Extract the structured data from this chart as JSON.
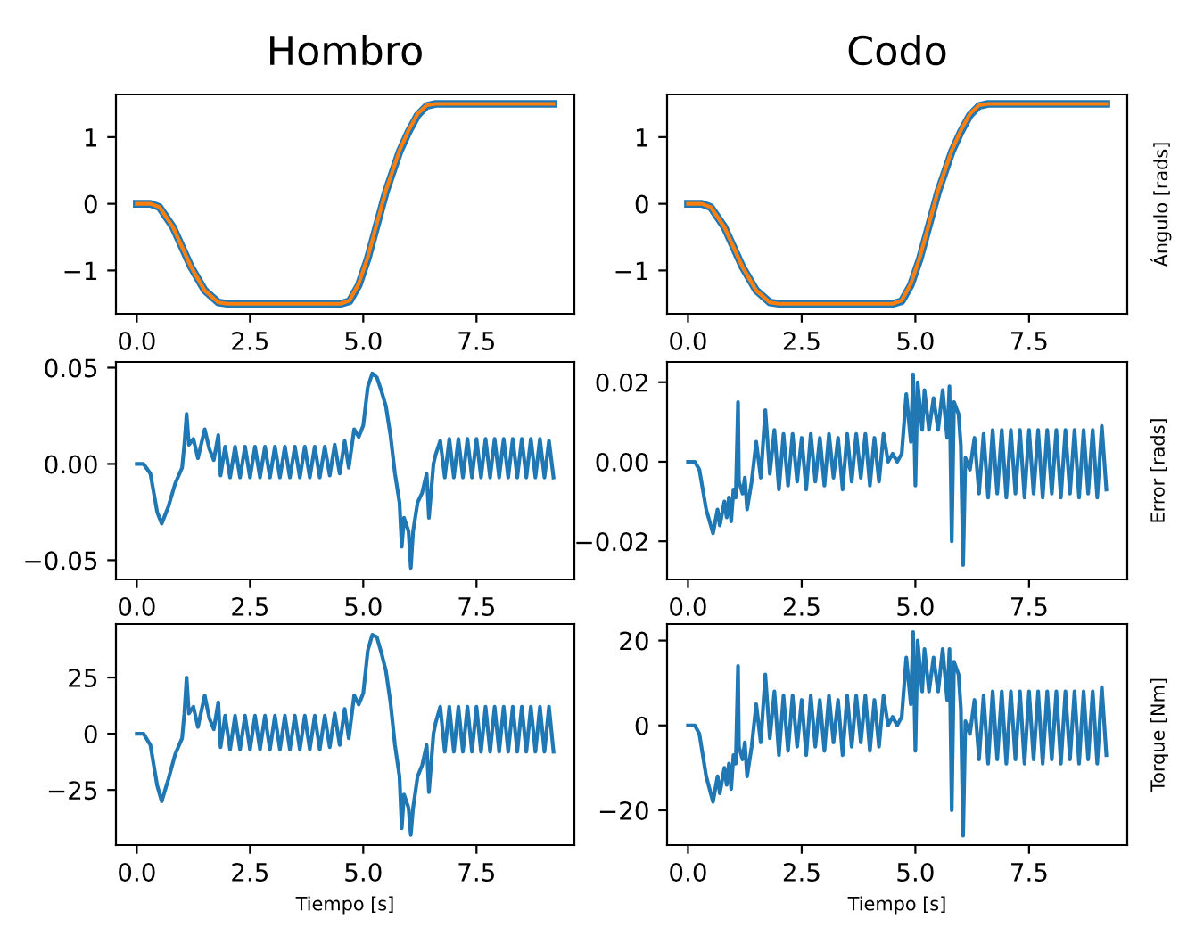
{
  "chart_data": [
    {
      "type": "line",
      "title": "Hombro",
      "xlim": [
        -0.46,
        9.66
      ],
      "xticks": [
        {
          "value": 0,
          "label": "0.0"
        },
        {
          "value": 2.5,
          "label": "2.5"
        },
        {
          "value": 5,
          "label": "5.0"
        },
        {
          "value": 7.5,
          "label": "7.5"
        }
      ],
      "ylim": [
        -1.65,
        1.64
      ],
      "yticks": [
        {
          "value": -1,
          "label": "−1"
        },
        0,
        1
      ],
      "grid": false,
      "x": [
        0,
        0.3,
        0.5,
        0.8,
        1.0,
        1.2,
        1.5,
        1.8,
        2.0,
        2.5,
        3,
        3.5,
        4,
        4.5,
        4.7,
        4.9,
        5.1,
        5.3,
        5.5,
        5.8,
        6.0,
        6.2,
        6.4,
        6.6,
        6.8,
        7.5,
        8,
        8.5,
        9,
        9.2
      ],
      "series": [
        {
          "color": "#1f77b4",
          "values": [
            0,
            0,
            -0.05,
            -0.35,
            -0.65,
            -0.95,
            -1.3,
            -1.48,
            -1.5,
            -1.5,
            -1.5,
            -1.5,
            -1.5,
            -1.5,
            -1.46,
            -1.22,
            -0.82,
            -0.32,
            0.18,
            0.78,
            1.08,
            1.33,
            1.47,
            1.5,
            1.5,
            1.5,
            1.5,
            1.5,
            1.5,
            1.5
          ]
        },
        {
          "color": "#ff7f0e",
          "values": [
            0,
            0,
            -0.05,
            -0.35,
            -0.65,
            -0.95,
            -1.3,
            -1.48,
            -1.5,
            -1.5,
            -1.5,
            -1.5,
            -1.5,
            -1.5,
            -1.45,
            -1.2,
            -0.8,
            -0.3,
            0.2,
            0.8,
            1.1,
            1.35,
            1.48,
            1.5,
            1.5,
            1.5,
            1.5,
            1.5,
            1.5,
            1.5
          ]
        }
      ]
    },
    {
      "type": "line",
      "title": "Codo",
      "ylabel": "Ángulo [rads]",
      "xlim": [
        -0.46,
        9.66
      ],
      "xticks": [
        {
          "value": 0,
          "label": "0.0"
        },
        {
          "value": 2.5,
          "label": "2.5"
        },
        {
          "value": 5,
          "label": "5.0"
        },
        {
          "value": 7.5,
          "label": "7.5"
        }
      ],
      "ylim": [
        -1.65,
        1.64
      ],
      "yticks": [
        {
          "value": -1,
          "label": "−1"
        },
        0,
        1
      ],
      "grid": false,
      "x": [
        0,
        0.3,
        0.5,
        0.8,
        1.0,
        1.2,
        1.5,
        1.8,
        2.0,
        2.5,
        3,
        3.5,
        4,
        4.5,
        4.7,
        4.9,
        5.1,
        5.3,
        5.5,
        5.8,
        6.0,
        6.2,
        6.4,
        6.6,
        6.8,
        7.5,
        8,
        8.5,
        9,
        9.2
      ],
      "series": [
        {
          "color": "#1f77b4",
          "values": [
            0,
            0,
            -0.05,
            -0.35,
            -0.65,
            -0.95,
            -1.3,
            -1.48,
            -1.5,
            -1.5,
            -1.5,
            -1.5,
            -1.5,
            -1.5,
            -1.46,
            -1.22,
            -0.82,
            -0.32,
            0.18,
            0.78,
            1.08,
            1.33,
            1.47,
            1.5,
            1.5,
            1.5,
            1.5,
            1.5,
            1.5,
            1.5
          ]
        },
        {
          "color": "#ff7f0e",
          "values": [
            0,
            0,
            -0.05,
            -0.35,
            -0.65,
            -0.95,
            -1.3,
            -1.48,
            -1.5,
            -1.5,
            -1.5,
            -1.5,
            -1.5,
            -1.5,
            -1.45,
            -1.2,
            -0.8,
            -0.3,
            0.2,
            0.8,
            1.1,
            1.35,
            1.48,
            1.5,
            1.5,
            1.5,
            1.5,
            1.5,
            1.5,
            1.5
          ]
        }
      ]
    },
    {
      "type": "line",
      "xlim": [
        -0.46,
        9.66
      ],
      "xticks": [
        {
          "value": 0,
          "label": "0.0"
        },
        {
          "value": 2.5,
          "label": "2.5"
        },
        {
          "value": 5,
          "label": "5.0"
        },
        {
          "value": 7.5,
          "label": "7.5"
        }
      ],
      "ylim": [
        -0.06,
        0.053
      ],
      "yticks": [
        {
          "value": -0.05,
          "label": "−0.05"
        },
        {
          "value": 0,
          "label": "0.00"
        },
        {
          "value": 0.05,
          "label": "0.05"
        }
      ],
      "grid": false,
      "series": [
        {
          "color": "#1f77b4",
          "x": [
            0,
            0.15,
            0.3,
            0.45,
            0.55,
            0.7,
            0.85,
            1.0,
            1.05,
            1.1,
            1.15,
            1.25,
            1.35,
            1.5,
            1.6,
            1.7,
            1.8,
            1.85,
            1.95,
            2.06,
            2.17,
            2.28,
            2.39,
            2.5,
            2.61,
            2.72,
            2.83,
            2.94,
            3.05,
            3.16,
            3.27,
            3.38,
            3.49,
            3.6,
            3.71,
            3.82,
            3.93,
            4.04,
            4.15,
            4.26,
            4.37,
            4.48,
            4.59,
            4.68,
            4.8,
            4.9,
            5.0,
            5.1,
            5.2,
            5.3,
            5.4,
            5.5,
            5.6,
            5.7,
            5.8,
            5.85,
            5.9,
            6.0,
            6.05,
            6.1,
            6.2,
            6.3,
            6.4,
            6.45,
            6.55,
            6.6,
            6.7,
            6.8,
            6.9,
            7.0,
            7.1,
            7.2,
            7.3,
            7.4,
            7.5,
            7.6,
            7.7,
            7.8,
            7.9,
            8.0,
            8.1,
            8.2,
            8.3,
            8.4,
            8.5,
            8.6,
            8.7,
            8.8,
            8.9,
            9.0,
            9.1,
            9.2
          ],
          "values": [
            0,
            0,
            -0.005,
            -0.025,
            -0.031,
            -0.022,
            -0.01,
            -0.002,
            0.01,
            0.026,
            0.01,
            0.013,
            0.003,
            0.018,
            0.008,
            0.002,
            0.015,
            -0.006,
            0.009,
            -0.007,
            0.009,
            -0.007,
            0.009,
            -0.007,
            0.009,
            -0.007,
            0.009,
            -0.007,
            0.009,
            -0.007,
            0.009,
            -0.007,
            0.009,
            -0.007,
            0.009,
            -0.007,
            0.009,
            -0.007,
            0.009,
            -0.006,
            0.01,
            -0.005,
            0.012,
            -0.002,
            0.018,
            0.014,
            0.02,
            0.04,
            0.047,
            0.045,
            0.038,
            0.03,
            0.015,
            -0.005,
            -0.02,
            -0.043,
            -0.028,
            -0.035,
            -0.054,
            -0.035,
            -0.02,
            -0.015,
            -0.005,
            -0.028,
            0.0,
            0.005,
            0.012,
            -0.007,
            0.013,
            -0.007,
            0.013,
            -0.007,
            0.013,
            -0.007,
            0.013,
            -0.007,
            0.013,
            -0.007,
            0.013,
            -0.007,
            0.013,
            -0.007,
            0.013,
            -0.007,
            0.013,
            -0.007,
            0.013,
            -0.007,
            0.013,
            -0.007,
            0.012,
            -0.007
          ]
        }
      ]
    },
    {
      "type": "line",
      "ylabel": "Error [rads]",
      "xlim": [
        -0.46,
        9.66
      ],
      "xticks": [
        {
          "value": 0,
          "label": "0.0"
        },
        {
          "value": 2.5,
          "label": "2.5"
        },
        {
          "value": 5,
          "label": "5.0"
        },
        {
          "value": 7.5,
          "label": "7.5"
        }
      ],
      "ylim": [
        -0.0296,
        0.0251
      ],
      "yticks": [
        {
          "value": -0.02,
          "label": "−0.02"
        },
        {
          "value": 0,
          "label": "0.00"
        },
        {
          "value": 0.02,
          "label": "0.02"
        }
      ],
      "grid": false,
      "series": [
        {
          "color": "#1f77b4",
          "x": [
            0,
            0.15,
            0.25,
            0.4,
            0.55,
            0.65,
            0.7,
            0.8,
            0.85,
            0.9,
            0.95,
            1.0,
            1.05,
            1.1,
            1.12,
            1.2,
            1.25,
            1.3,
            1.4,
            1.5,
            1.6,
            1.7,
            1.8,
            1.9,
            2.0,
            2.1,
            2.2,
            2.3,
            2.4,
            2.5,
            2.6,
            2.7,
            2.8,
            2.9,
            3.0,
            3.1,
            3.2,
            3.3,
            3.4,
            3.5,
            3.6,
            3.7,
            3.8,
            3.9,
            4.0,
            4.1,
            4.2,
            4.3,
            4.4,
            4.5,
            4.6,
            4.7,
            4.8,
            4.9,
            4.95,
            5.0,
            5.05,
            5.15,
            5.2,
            5.3,
            5.4,
            5.5,
            5.6,
            5.7,
            5.75,
            5.8,
            5.85,
            5.95,
            6.0,
            6.05,
            6.1,
            6.2,
            6.3,
            6.4,
            6.5,
            6.6,
            6.7,
            6.8,
            6.9,
            7.0,
            7.1,
            7.2,
            7.3,
            7.4,
            7.5,
            7.6,
            7.7,
            7.8,
            7.9,
            8.0,
            8.1,
            8.2,
            8.3,
            8.4,
            8.5,
            8.6,
            8.7,
            8.8,
            8.9,
            9.0,
            9.1,
            9.2
          ],
          "values": [
            0,
            0,
            -0.002,
            -0.012,
            -0.018,
            -0.012,
            -0.016,
            -0.01,
            -0.014,
            -0.009,
            -0.015,
            -0.007,
            -0.009,
            0.015,
            -0.005,
            -0.008,
            -0.004,
            -0.012,
            -0.005,
            0.005,
            -0.004,
            0.013,
            -0.003,
            0.008,
            -0.007,
            0.007,
            -0.006,
            0.007,
            -0.005,
            0.006,
            -0.007,
            0.007,
            -0.005,
            0.006,
            -0.006,
            0.007,
            -0.004,
            0.006,
            -0.007,
            0.007,
            -0.005,
            0.007,
            -0.004,
            0.007,
            -0.006,
            0.006,
            -0.005,
            0.007,
            0.0,
            0.002,
            0.0,
            0.002,
            0.017,
            0.005,
            0.022,
            -0.006,
            0.02,
            0.008,
            0.018,
            0.008,
            0.016,
            0.008,
            0.018,
            0.006,
            0.019,
            -0.02,
            0.015,
            0.012,
            0.004,
            -0.026,
            0.001,
            -0.002,
            0.006,
            -0.008,
            0.007,
            -0.009,
            0.008,
            -0.008,
            0.008,
            -0.009,
            0.008,
            -0.008,
            0.008,
            -0.009,
            0.008,
            -0.008,
            0.008,
            -0.009,
            0.008,
            -0.008,
            0.008,
            -0.009,
            0.008,
            -0.008,
            0.008,
            -0.009,
            0.008,
            -0.008,
            0.008,
            -0.009,
            0.009,
            -0.007
          ]
        }
      ]
    },
    {
      "type": "line",
      "xlabel": "Tiempo [s]",
      "xlim": [
        -0.46,
        9.66
      ],
      "xticks": [
        {
          "value": 0,
          "label": "0.0"
        },
        {
          "value": 2.5,
          "label": "2.5"
        },
        {
          "value": 5,
          "label": "5.0"
        },
        {
          "value": 7.5,
          "label": "7.5"
        }
      ],
      "ylim": [
        -49.5,
        48.8
      ],
      "yticks": [
        {
          "value": -25,
          "label": "−25"
        },
        0,
        25
      ],
      "grid": false,
      "series": [
        {
          "color": "#1f77b4",
          "x": [
            0,
            0.15,
            0.3,
            0.45,
            0.55,
            0.7,
            0.85,
            1.0,
            1.05,
            1.1,
            1.15,
            1.25,
            1.35,
            1.5,
            1.6,
            1.7,
            1.8,
            1.85,
            1.95,
            2.06,
            2.17,
            2.28,
            2.39,
            2.5,
            2.61,
            2.72,
            2.83,
            2.94,
            3.05,
            3.16,
            3.27,
            3.38,
            3.49,
            3.6,
            3.71,
            3.82,
            3.93,
            4.04,
            4.15,
            4.26,
            4.37,
            4.48,
            4.59,
            4.68,
            4.8,
            4.9,
            5.0,
            5.1,
            5.2,
            5.3,
            5.4,
            5.5,
            5.6,
            5.7,
            5.8,
            5.85,
            5.9,
            6.0,
            6.05,
            6.1,
            6.2,
            6.3,
            6.4,
            6.45,
            6.55,
            6.6,
            6.7,
            6.8,
            6.9,
            7.0,
            7.1,
            7.2,
            7.3,
            7.4,
            7.5,
            7.6,
            7.7,
            7.8,
            7.9,
            8.0,
            8.1,
            8.2,
            8.3,
            8.4,
            8.5,
            8.6,
            8.7,
            8.8,
            8.9,
            9.0,
            9.1,
            9.2
          ],
          "values": [
            0,
            0,
            -5,
            -23,
            -30,
            -20,
            -9,
            -2,
            9,
            25,
            9,
            12,
            3,
            17,
            7,
            2,
            14,
            -6,
            8,
            -7,
            8,
            -7,
            8,
            -7,
            8,
            -7,
            8,
            -7,
            8,
            -7,
            8,
            -7,
            8,
            -7,
            8,
            -7,
            8,
            -7,
            8,
            -6,
            9,
            -5,
            11,
            -2,
            17,
            13,
            18,
            37,
            44,
            43,
            36,
            28,
            14,
            -5,
            -19,
            -42,
            -27,
            -33,
            -45,
            -33,
            -19,
            -14,
            -5,
            -26,
            0,
            5,
            12,
            -8,
            12,
            -8,
            12,
            -8,
            12,
            -8,
            12,
            -8,
            12,
            -8,
            12,
            -8,
            12,
            -8,
            12,
            -8,
            12,
            -8,
            12,
            -8,
            12,
            -8,
            12,
            -8
          ]
        }
      ]
    },
    {
      "type": "line",
      "xlabel": "Tiempo [s]",
      "ylabel": "Torque [Nm]",
      "xlim": [
        -0.46,
        9.66
      ],
      "xticks": [
        {
          "value": 0,
          "label": "0.0"
        },
        {
          "value": 2.5,
          "label": "2.5"
        },
        {
          "value": 5,
          "label": "5.0"
        },
        {
          "value": 7.5,
          "label": "7.5"
        }
      ],
      "ylim": [
        -28.2,
        23.9
      ],
      "yticks": [
        {
          "value": -20,
          "label": "−20"
        },
        0,
        20
      ],
      "grid": false,
      "series": [
        {
          "color": "#1f77b4",
          "x": [
            0,
            0.15,
            0.25,
            0.4,
            0.55,
            0.65,
            0.7,
            0.8,
            0.85,
            0.9,
            0.95,
            1.0,
            1.05,
            1.1,
            1.12,
            1.2,
            1.25,
            1.3,
            1.4,
            1.5,
            1.6,
            1.7,
            1.8,
            1.9,
            2.0,
            2.1,
            2.2,
            2.3,
            2.4,
            2.5,
            2.6,
            2.7,
            2.8,
            2.9,
            3.0,
            3.1,
            3.2,
            3.3,
            3.4,
            3.5,
            3.6,
            3.7,
            3.8,
            3.9,
            4.0,
            4.1,
            4.2,
            4.3,
            4.4,
            4.5,
            4.6,
            4.7,
            4.8,
            4.9,
            4.95,
            5.0,
            5.05,
            5.15,
            5.2,
            5.3,
            5.4,
            5.5,
            5.6,
            5.7,
            5.75,
            5.8,
            5.85,
            5.95,
            6.0,
            6.05,
            6.1,
            6.2,
            6.3,
            6.4,
            6.5,
            6.6,
            6.7,
            6.8,
            6.9,
            7.0,
            7.1,
            7.2,
            7.3,
            7.4,
            7.5,
            7.6,
            7.7,
            7.8,
            7.9,
            8.0,
            8.1,
            8.2,
            8.3,
            8.4,
            8.5,
            8.6,
            8.7,
            8.8,
            8.9,
            9.0,
            9.1,
            9.2
          ],
          "values": [
            0,
            0,
            -2,
            -12,
            -18,
            -12,
            -16,
            -10,
            -14,
            -9,
            -15,
            -7,
            -9,
            14,
            -5,
            -8,
            -4,
            -12,
            -5,
            5,
            -4,
            12,
            -3,
            8,
            -7,
            7,
            -6,
            7,
            -5,
            6,
            -7,
            7,
            -5,
            6,
            -6,
            7,
            -4,
            6,
            -7,
            7,
            -5,
            7,
            -4,
            7,
            -6,
            6,
            -5,
            7,
            0,
            2,
            0,
            2,
            16,
            5,
            22,
            -6,
            20,
            8,
            18,
            8,
            16,
            8,
            18,
            6,
            18,
            -20,
            15,
            12,
            4,
            -26,
            1,
            -2,
            6,
            -8,
            7,
            -9,
            8,
            -8,
            8,
            -9,
            8,
            -8,
            8,
            -9,
            8,
            -8,
            8,
            -9,
            8,
            -8,
            8,
            -9,
            8,
            -8,
            8,
            -9,
            8,
            -8,
            8,
            -9,
            9,
            -7
          ]
        }
      ]
    }
  ]
}
